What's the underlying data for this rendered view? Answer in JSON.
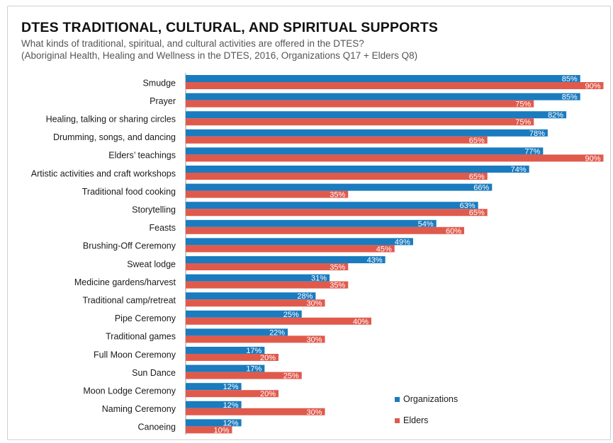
{
  "chart_data": {
    "type": "bar",
    "orientation": "horizontal",
    "title": "DTES TRADITIONAL, CULTURAL, AND SPIRITUAL SUPPORTS",
    "subtitle_lines": [
      "What kinds of traditional, spiritual, and cultural activities are offered in the DTES?",
      "(Aboriginal Health, Healing and Wellness in the DTES, 2016, Organizations Q17 + Elders Q8)"
    ],
    "xlim": [
      0,
      100
    ],
    "grid": false,
    "legend_position": "bottom-right",
    "categories": [
      "Smudge",
      "Prayer",
      "Healing, talking or sharing circles",
      "Drumming, songs, and dancing",
      "Elders’ teachings",
      "Artistic activities and craft workshops",
      "Traditional food cooking",
      "Storytelling",
      "Feasts",
      "Brushing-Off Ceremony",
      "Sweat lodge",
      "Medicine gardens/harvest",
      "Traditional camp/retreat",
      "Pipe Ceremony",
      "Traditional games",
      "Full Moon Ceremony",
      "Sun Dance",
      "Moon Lodge Ceremony",
      "Naming Ceremony",
      "Canoeing"
    ],
    "series": [
      {
        "name": "Organizations",
        "color": "#1a7bbf",
        "values": [
          85,
          85,
          82,
          78,
          77,
          74,
          66,
          63,
          54,
          49,
          43,
          31,
          28,
          25,
          22,
          17,
          17,
          12,
          12,
          12
        ],
        "labels": [
          "85%",
          "85%",
          "82%",
          "78%",
          "77%",
          "74%",
          "66%",
          "63%",
          "54%",
          "49%",
          "43%",
          "31%",
          "28%",
          "25%",
          "22%",
          "17%",
          "17%",
          "12%",
          "12%",
          "12%"
        ]
      },
      {
        "name": "Elders",
        "color": "#e05a4c",
        "values": [
          90,
          75,
          75,
          65,
          90,
          65,
          35,
          65,
          60,
          45,
          35,
          35,
          30,
          40,
          30,
          20,
          25,
          20,
          30,
          10
        ],
        "labels": [
          "90%",
          "75%",
          "75%",
          "65%",
          "90%",
          "65%",
          "35%",
          "65%",
          "60%",
          "45%",
          "35%",
          "35%",
          "30%",
          "40%",
          "30%",
          "20%",
          "25%",
          "20%",
          "30%",
          "10%"
        ]
      }
    ]
  }
}
